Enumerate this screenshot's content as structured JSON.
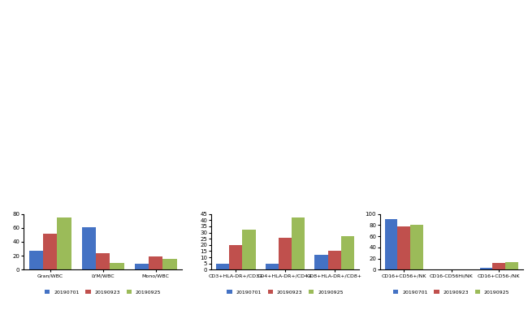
{
  "chart_data": [
    {
      "type": "bar",
      "grid": false,
      "legend": "bottom",
      "categories": [
        "Gran/WBC",
        "LYM/WBC",
        "Mono/WBC"
      ],
      "ylim": [
        0,
        80
      ],
      "yticks": [
        0,
        20,
        40,
        60,
        80
      ],
      "series": [
        {
          "name": "20190701",
          "color": "#4472c4",
          "values": [
            27,
            61,
            8
          ]
        },
        {
          "name": "20190923",
          "color": "#c0504d",
          "values": [
            52,
            24,
            19
          ]
        },
        {
          "name": "20190925",
          "color": "#9bbb59",
          "values": [
            75,
            10,
            15
          ]
        }
      ]
    },
    {
      "type": "bar",
      "grid": false,
      "legend": "bottom",
      "categories": [
        "CD3+HLA-DR+/CD3+",
        "CD4+HLA-DR+/CD4+",
        "CD8+HLA-DR+/CD8+"
      ],
      "ylim": [
        0,
        45
      ],
      "yticks": [
        0,
        5,
        10,
        15,
        20,
        25,
        30,
        35,
        40,
        45
      ],
      "series": [
        {
          "name": "20190701",
          "color": "#4472c4",
          "values": [
            5,
            5,
            12
          ]
        },
        {
          "name": "20190923",
          "color": "#c0504d",
          "values": [
            20,
            26,
            15
          ]
        },
        {
          "name": "20190925",
          "color": "#9bbb59",
          "values": [
            32,
            42,
            27
          ]
        }
      ]
    },
    {
      "type": "bar",
      "grid": false,
      "legend": "bottom",
      "categories": [
        "CD16+CD56+/NK",
        "CD16-CD56Hi/NK",
        "CD16+CD56-/NK"
      ],
      "ylim": [
        0,
        100
      ],
      "yticks": [
        0,
        20,
        40,
        60,
        80,
        100
      ],
      "series": [
        {
          "name": "20190701",
          "color": "#4472c4",
          "values": [
            90,
            1,
            4
          ]
        },
        {
          "name": "20190923",
          "color": "#c0504d",
          "values": [
            77,
            1,
            12
          ]
        },
        {
          "name": "20190925",
          "color": "#9bbb59",
          "values": [
            80,
            1,
            14
          ]
        }
      ]
    }
  ]
}
